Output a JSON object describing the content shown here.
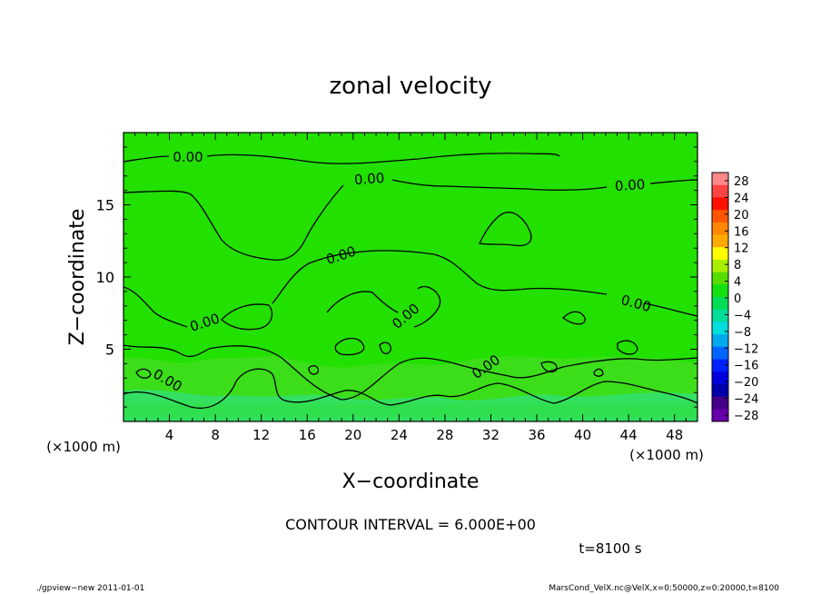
{
  "chart_data": {
    "type": "heatmap",
    "title": "zonal velocity",
    "xlabel": "X−coordinate",
    "ylabel": "Z−coordinate",
    "x_unit_left": "(×1000 m)",
    "x_unit_right": "(×1000 m)",
    "xlim": [
      0,
      50
    ],
    "ylim": [
      0,
      20
    ],
    "x_ticks": [
      4,
      8,
      12,
      16,
      20,
      24,
      28,
      32,
      36,
      40,
      44,
      48
    ],
    "y_ticks": [
      5,
      10,
      15
    ],
    "contour_interval_text": "CONTOUR INTERVAL = 6.000E+00",
    "time_text": "t=8100 s",
    "contour_labels": [
      "0.00",
      "0.00",
      "0.00",
      "0.00",
      "0.00",
      "0.00",
      "0.00",
      "0.00",
      "0.00"
    ],
    "colorbar": {
      "labels": [
        "28",
        "24",
        "20",
        "16",
        "12",
        "8",
        "4",
        "0",
        "−4",
        "−8",
        "−12",
        "−16",
        "−20",
        "−24",
        "−28"
      ],
      "colors": [
        "#ff8888",
        "#ff4444",
        "#ff1100",
        "#ff5500",
        "#ff8800",
        "#ffaa00",
        "#ffff00",
        "#aaee00",
        "#55dd00",
        "#11e011",
        "#00dd55",
        "#00dd99",
        "#00dddd",
        "#00aaee",
        "#0066ff",
        "#0022ff",
        "#0000dd",
        "#0000aa",
        "#440088",
        "#6600aa"
      ]
    }
  },
  "footer": {
    "left": "./gpview−new  2011-01-01",
    "right": "MarsCond_VelX.nc@VelX,x=0:50000,z=0:20000,t=8100"
  }
}
